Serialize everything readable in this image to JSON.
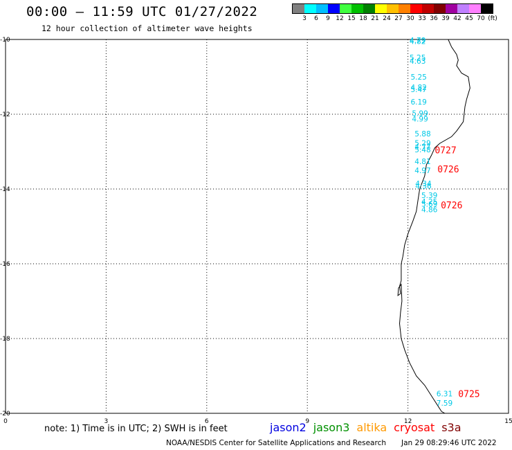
{
  "header": {
    "title": "00:00 – 11:59 UTC 01/27/2022",
    "subtitle": "12 hour collection of altimeter wave heights"
  },
  "legend": {
    "colors": [
      "#808080",
      "#00ffff",
      "#00bfff",
      "#0000ff",
      "#40ff40",
      "#00c000",
      "#008000",
      "#ffff00",
      "#ffc000",
      "#ff8000",
      "#ff0000",
      "#c00000",
      "#800000",
      "#a000a0",
      "#c080ff",
      "#ff80ff",
      "#000000"
    ],
    "labels": [
      "3",
      "6",
      "9",
      "12",
      "15",
      "18",
      "21",
      "24",
      "27",
      "30",
      "33",
      "36",
      "39",
      "42",
      "45",
      "70",
      "(ft)"
    ]
  },
  "axes": {
    "lon_labels": [
      "0",
      "3",
      "6",
      "9",
      "12",
      "15"
    ],
    "lat_labels": [
      "-10",
      "-12",
      "-14",
      "-16",
      "-18",
      "-20"
    ]
  },
  "wave_color": "#00c8e6",
  "time_color": "#ff0000",
  "wave_labels": [
    {
      "lon": 12.05,
      "lat": -10.02,
      "text": "4.79"
    },
    {
      "lon": 12.05,
      "lat": -10.05,
      "text": "4.82"
    },
    {
      "lon": 12.05,
      "lat": -10.48,
      "text": "5.25"
    },
    {
      "lon": 12.05,
      "lat": -10.57,
      "text": "4.63"
    },
    {
      "lon": 12.08,
      "lat": -11.0,
      "text": "5.25"
    },
    {
      "lon": 12.08,
      "lat": -11.28,
      "text": "4.82"
    },
    {
      "lon": 12.08,
      "lat": -11.33,
      "text": "5.47"
    },
    {
      "lon": 12.08,
      "lat": -11.67,
      "text": "6.19"
    },
    {
      "lon": 12.12,
      "lat": -11.97,
      "text": "5.99"
    },
    {
      "lon": 12.12,
      "lat": -12.12,
      "text": "4.99"
    },
    {
      "lon": 12.2,
      "lat": -12.52,
      "text": "5.88"
    },
    {
      "lon": 12.2,
      "lat": -12.77,
      "text": "5.29"
    },
    {
      "lon": 12.2,
      "lat": -12.87,
      "text": "4.77"
    },
    {
      "lon": 12.2,
      "lat": -12.94,
      "text": "5.48"
    },
    {
      "lon": 12.2,
      "lat": -13.26,
      "text": "4.81"
    },
    {
      "lon": 12.2,
      "lat": -13.5,
      "text": "4.97"
    },
    {
      "lon": 12.22,
      "lat": -13.85,
      "text": "4.34"
    },
    {
      "lon": 12.22,
      "lat": -13.92,
      "text": "4.36"
    },
    {
      "lon": 12.4,
      "lat": -14.17,
      "text": "5.39"
    },
    {
      "lon": 12.4,
      "lat": -14.33,
      "text": "4.25"
    },
    {
      "lon": 12.4,
      "lat": -14.4,
      "text": "5.69"
    },
    {
      "lon": 12.4,
      "lat": -14.55,
      "text": "4.86"
    },
    {
      "lon": 12.85,
      "lat": -19.47,
      "text": "6.31"
    },
    {
      "lon": 12.85,
      "lat": -19.72,
      "text": "7.59"
    }
  ],
  "time_labels": [
    {
      "lon": 12.8,
      "lat": -12.95,
      "text": "0727"
    },
    {
      "lon": 12.88,
      "lat": -13.46,
      "text": "0726"
    },
    {
      "lon": 12.98,
      "lat": -14.43,
      "text": "0726"
    },
    {
      "lon": 13.5,
      "lat": -19.47,
      "text": "0725"
    }
  ],
  "coastline": [
    [
      13.2,
      -10.0
    ],
    [
      13.3,
      -10.2
    ],
    [
      13.45,
      -10.4
    ],
    [
      13.5,
      -10.55
    ],
    [
      13.45,
      -10.7
    ],
    [
      13.6,
      -10.9
    ],
    [
      13.8,
      -11.0
    ],
    [
      13.85,
      -11.3
    ],
    [
      13.75,
      -11.6
    ],
    [
      13.7,
      -11.8
    ],
    [
      13.65,
      -12.2
    ],
    [
      13.45,
      -12.45
    ],
    [
      13.3,
      -12.6
    ],
    [
      12.95,
      -12.78
    ],
    [
      12.8,
      -12.9
    ],
    [
      12.7,
      -13.1
    ],
    [
      12.55,
      -13.35
    ],
    [
      12.5,
      -13.65
    ],
    [
      12.35,
      -14.0
    ],
    [
      12.3,
      -14.3
    ],
    [
      12.25,
      -14.6
    ],
    [
      12.15,
      -14.85
    ],
    [
      12.0,
      -15.2
    ],
    [
      11.9,
      -15.5
    ],
    [
      11.85,
      -15.8
    ],
    [
      11.8,
      -16.0
    ],
    [
      11.8,
      -16.45
    ],
    [
      11.75,
      -16.6
    ],
    [
      11.78,
      -16.8
    ],
    [
      11.7,
      -16.85
    ],
    [
      11.72,
      -16.65
    ],
    [
      11.8,
      -16.55
    ],
    [
      11.82,
      -17.0
    ],
    [
      11.78,
      -17.3
    ],
    [
      11.75,
      -17.6
    ],
    [
      11.8,
      -18.0
    ],
    [
      11.9,
      -18.3
    ],
    [
      12.05,
      -18.65
    ],
    [
      12.25,
      -19.0
    ],
    [
      12.5,
      -19.25
    ],
    [
      12.75,
      -19.6
    ],
    [
      13.0,
      -19.95
    ],
    [
      13.1,
      -20.0
    ]
  ],
  "footer": {
    "note": "note: 1) Time is in UTC; 2) SWH is in feet",
    "missions": [
      {
        "name": "jason2",
        "color": "#0000e0"
      },
      {
        "name": "jason3",
        "color": "#009000"
      },
      {
        "name": "altika",
        "color": "#ff9900"
      },
      {
        "name": "cryosat",
        "color": "#ff0000"
      },
      {
        "name": "s3a",
        "color": "#800000"
      }
    ],
    "credit": "NOAA/NESDIS Center for Satellite Applications and Research",
    "timestamp": "Jan 29 08:29:46 UTC 2022"
  }
}
